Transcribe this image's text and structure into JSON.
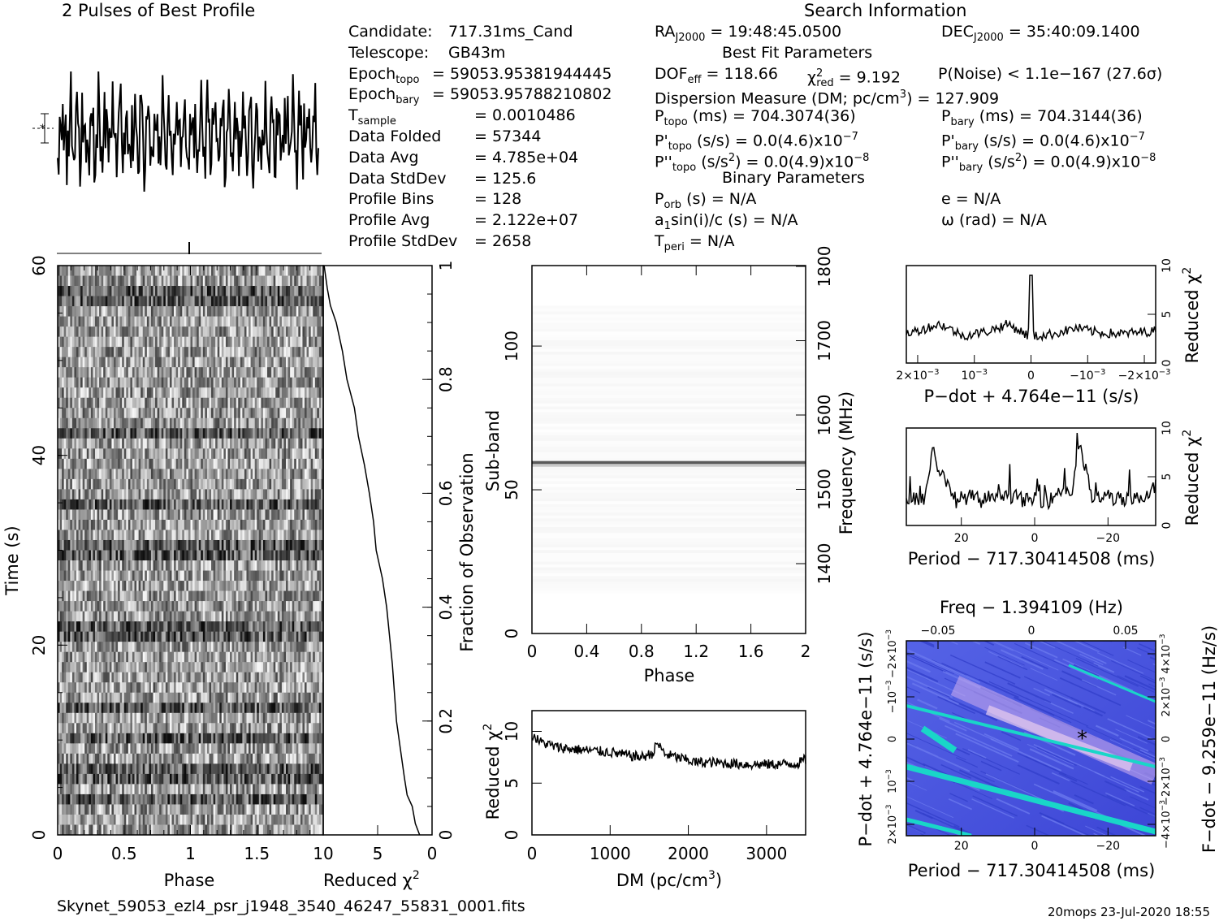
{
  "header": {
    "profile_title": "2 Pulses of Best Profile",
    "search_title": "Search Information",
    "best_fit_title": "Best Fit Parameters",
    "binary_title": "Binary Parameters",
    "filename": "Skynet_59053_ezl4_psr_j1948_3540_46247_55831_0001.fits",
    "stamp": "20mops 23-Jul-2020 18:55"
  },
  "info_left": [
    {
      "label": "Candidate:",
      "value": "717.31ms_Cand"
    },
    {
      "label": "Telescope:",
      "value": "GB43m"
    },
    {
      "label": "Epoch",
      "sub": "topo",
      "value": "= 59053.95381944445"
    },
    {
      "label": "Epoch",
      "sub": "bary",
      "value": "= 59053.95788210802"
    },
    {
      "label": "T",
      "sub": "sample",
      "value": "=   0.0010486"
    },
    {
      "label": "Data Folded",
      "value": "=   57344"
    },
    {
      "label": "Data Avg",
      "value": "=   4.785e+04"
    },
    {
      "label": "Data StdDev",
      "value": "=   125.6"
    },
    {
      "label": "Profile Bins",
      "value": "=   128"
    },
    {
      "label": "Profile Avg",
      "value": "=   2.122e+07"
    },
    {
      "label": "Profile StdDev",
      "value": "=   2658"
    }
  ],
  "info_right": {
    "ra": "RA",
    "ra_sub": "J2000",
    "ra_val": " = 19:48:45.0500",
    "dec": "DEC",
    "dec_sub": "J2000",
    "dec_val": " = 35:40:09.1400",
    "dof": "DOF",
    "dof_sub": "eff",
    "dof_val": " = 118.66",
    "chi": "χ",
    "chi_sub": "red",
    "chi_val": " = 9.192",
    "pnoise": "P(Noise) < 1.1e−167   (27.6σ)",
    "dm": "Dispersion Measure (DM; pc/cm",
    "dm_val": ") = 127.909",
    "ptopo": "P",
    "ptopo_sub": "topo",
    "ptopo_val": " (ms) =  704.3074(36)",
    "pbary": "P",
    "pbary_sub": "bary",
    "pbary_val": " (ms) =  704.3144(36)",
    "pdtopo": "P'",
    "pdtopo_sub": "topo",
    "pdtopo_val": " (s/s) = 0.0(4.6)x10",
    "pdtopo_exp": "−7",
    "pdbary": "P'",
    "pdbary_sub": "bary",
    "pdbary_val": " (s/s) = 0.0(4.6)x10",
    "pdbary_exp": "−7",
    "pddtopo": "P''",
    "pddtopo_sub": "topo",
    "pddtopo_val": " (s/s",
    "pddtopo_val2": ") = 0.0(4.9)x10",
    "pddtopo_exp": "−8",
    "pddbary": "P''",
    "pddbary_sub": "bary",
    "pddbary_val": " (s/s",
    "pddbary_val2": ") = 0.0(4.9)x10",
    "pddbary_exp": "−8",
    "porb": "P",
    "porb_sub": "orb",
    "porb_val": " (s) = N/A",
    "e_val": "e = N/A",
    "a1": "a",
    "a1_sub": "1",
    "a1_val": "sin(i)/c (s) = N/A",
    "omega_val": "ω (rad) = N/A",
    "tperi": "T",
    "tperi_sub": "peri",
    "tperi_val": " = N/A"
  },
  "chart_data": [
    {
      "type": "line",
      "name": "profile",
      "title": "2 Pulses of Best Profile",
      "x": [
        0,
        2
      ],
      "noise_amplitude": "high"
    },
    {
      "type": "heatmap",
      "name": "time-phase",
      "xlabel": "Phase",
      "ylabel": "Time (s)",
      "xlim": [
        0,
        2
      ],
      "ylim": [
        0,
        60
      ],
      "xticks": [
        "0",
        "0.5",
        "1",
        "1.5"
      ],
      "yticks": [
        "0",
        "20",
        "40",
        "60"
      ]
    },
    {
      "type": "line",
      "name": "time-chi2",
      "xlabel": "Reduced χ",
      "xlim": [
        10,
        0
      ],
      "xticks": [
        "10",
        "5",
        "0"
      ],
      "ylabel_right": "Fraction of Observation",
      "yticks_right": [
        "0",
        "0.2",
        "0.4",
        "0.6",
        "0.8",
        "1"
      ],
      "x": [
        1.2,
        1.5,
        1.8,
        2.3,
        2.5,
        3.2,
        3.6,
        4.2,
        4.6,
        5.1,
        5.4,
        5.8,
        6.2,
        6.7,
        7.2,
        7.8,
        8.3,
        8.8,
        9.3,
        9.6,
        9.9
      ],
      "y": [
        0.0,
        0.02,
        0.05,
        0.07,
        0.1,
        0.2,
        0.3,
        0.4,
        0.45,
        0.5,
        0.55,
        0.6,
        0.65,
        0.7,
        0.75,
        0.8,
        0.85,
        0.9,
        0.93,
        0.96,
        1.0
      ]
    },
    {
      "type": "heatmap",
      "name": "subband-phase",
      "xlabel": "Phase",
      "ylabel": "Sub-band",
      "ylabel_right": "Frequency (MHz)",
      "xlim": [
        0,
        2
      ],
      "ylim": [
        0,
        128
      ],
      "xticks": [
        "0",
        "0.4",
        "0.8",
        "1.2",
        "1.6",
        "2"
      ],
      "yticks": [
        "0",
        "50",
        "100"
      ],
      "yticks_right": [
        "1400",
        "1500",
        "1600",
        "1700",
        "1800"
      ],
      "bright_subband": 59
    },
    {
      "type": "line",
      "name": "dm-chi2",
      "xlabel": "DM (pc/cm",
      "xlabel_tail": ")",
      "ylabel": "Reduced χ",
      "xlim": [
        0,
        3500
      ],
      "ylim": [
        0,
        12
      ],
      "xticks": [
        "0",
        "1000",
        "2000",
        "3000"
      ],
      "yticks": [
        "0",
        "5",
        "10"
      ],
      "x": [
        0,
        100,
        300,
        500,
        800,
        1000,
        1200,
        1400,
        1550,
        1600,
        1700,
        1900,
        2100,
        2300,
        2500,
        2800,
        3100,
        3400,
        3500
      ],
      "y": [
        9.7,
        9.0,
        8.5,
        8.3,
        8.1,
        8.0,
        7.7,
        7.5,
        7.9,
        8.9,
        7.8,
        7.4,
        7.0,
        7.0,
        6.9,
        6.8,
        6.8,
        6.9,
        7.3
      ]
    },
    {
      "type": "line",
      "name": "pdot-chi2",
      "xlabel": "P−dot + 4.764e−11 (s/s)",
      "ylabel": "Reduced χ",
      "xlim": [
        0.0022,
        -0.0022
      ],
      "ylim": [
        0,
        10
      ],
      "xticks": [
        "2×10",
        "10",
        "0",
        "−10",
        "−2×10"
      ],
      "yticks": [
        "0",
        "5",
        "10"
      ],
      "x": [
        0.0022,
        0.0016,
        0.0012,
        0.0008,
        0.0004,
        5e-05,
        0.0,
        -5e-05,
        -0.0004,
        -0.0008,
        -0.0012,
        -0.0016,
        -0.0022
      ],
      "y": [
        3.0,
        4.0,
        2.8,
        3.2,
        4.0,
        2.8,
        9.0,
        2.7,
        3.0,
        3.6,
        3.1,
        3.0,
        3.3
      ]
    },
    {
      "type": "line",
      "name": "period-chi2",
      "xlabel": "Period − 717.30414508 (ms)",
      "ylabel": "Reduced χ",
      "xlim": [
        35,
        -33
      ],
      "ylim": [
        0,
        10
      ],
      "xticks": [
        "20",
        "0",
        "−20"
      ],
      "yticks": [
        "0",
        "5",
        "10"
      ],
      "x": [
        35,
        30,
        28,
        25,
        22,
        18,
        14,
        10,
        6,
        2,
        0,
        -4,
        -8,
        -10,
        -12,
        -16,
        -20,
        -24,
        -28,
        -33
      ],
      "y": [
        3.0,
        2.7,
        7.5,
        5.0,
        2.5,
        3.0,
        2.5,
        3.5,
        3.0,
        2.5,
        2.8,
        2.5,
        4.0,
        3.0,
        8.5,
        2.5,
        3.0,
        2.5,
        2.7,
        4.0
      ]
    },
    {
      "type": "heatmap",
      "name": "period-pdot",
      "title": "Freq − 1.394109 (Hz)",
      "xlabel": "Period − 717.30414508 (ms)",
      "ylabel": "P−dot + 4.764e−11 (s/s)",
      "ylabel_right": "F−dot − 9.259e−11 (Hz/s)",
      "xticks": [
        "20",
        "0",
        "−20"
      ],
      "xticks_top": [
        "−0.05",
        "0",
        "0.05"
      ],
      "yticks_left": [
        "2×10",
        "10",
        "0",
        "−10",
        "−2×10"
      ],
      "yticks_right": [
        "−4×10",
        "−2×10",
        "0",
        "2×10",
        "4×10"
      ],
      "best_marker": {
        "period": -13,
        "pdot": 0.0
      }
    }
  ]
}
